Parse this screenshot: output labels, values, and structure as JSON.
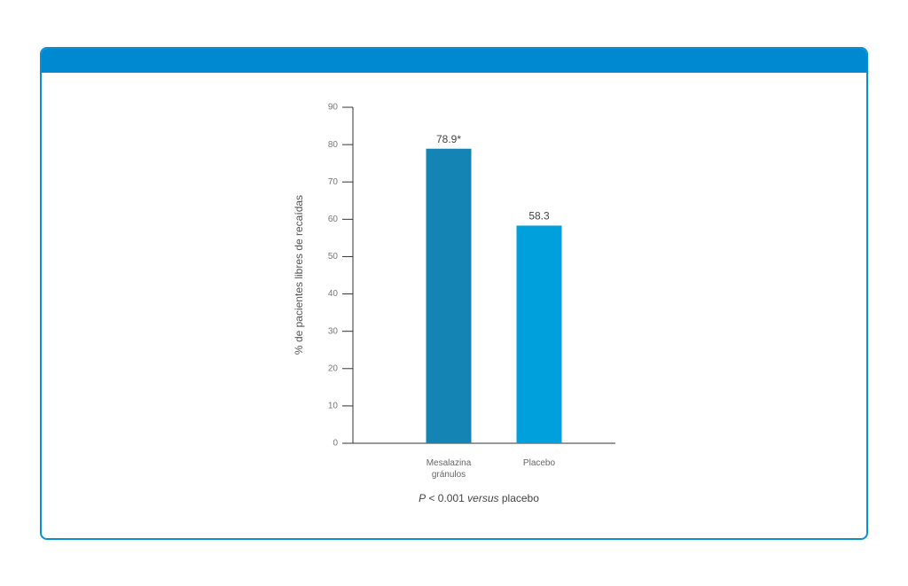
{
  "chart_data": {
    "type": "bar",
    "y_label": "% de pacientes libres de recaídas",
    "categories": [
      "Mesalazina gránulos",
      "Placebo"
    ],
    "values": [
      78.9,
      58.3
    ],
    "value_labels": [
      "78.9*",
      "58.3"
    ],
    "colors": [
      "#1384b4",
      "#00a0dc"
    ],
    "ylim": [
      0,
      90
    ],
    "yticks": [
      0,
      10,
      20,
      30,
      40,
      50,
      60,
      70,
      80,
      90
    ],
    "footnote": [
      {
        "text": "P",
        "italic": true
      },
      {
        "text": " < 0.001 ",
        "italic": false
      },
      {
        "text": "versus",
        "italic": true
      },
      {
        "text": " placebo",
        "italic": false
      }
    ]
  }
}
